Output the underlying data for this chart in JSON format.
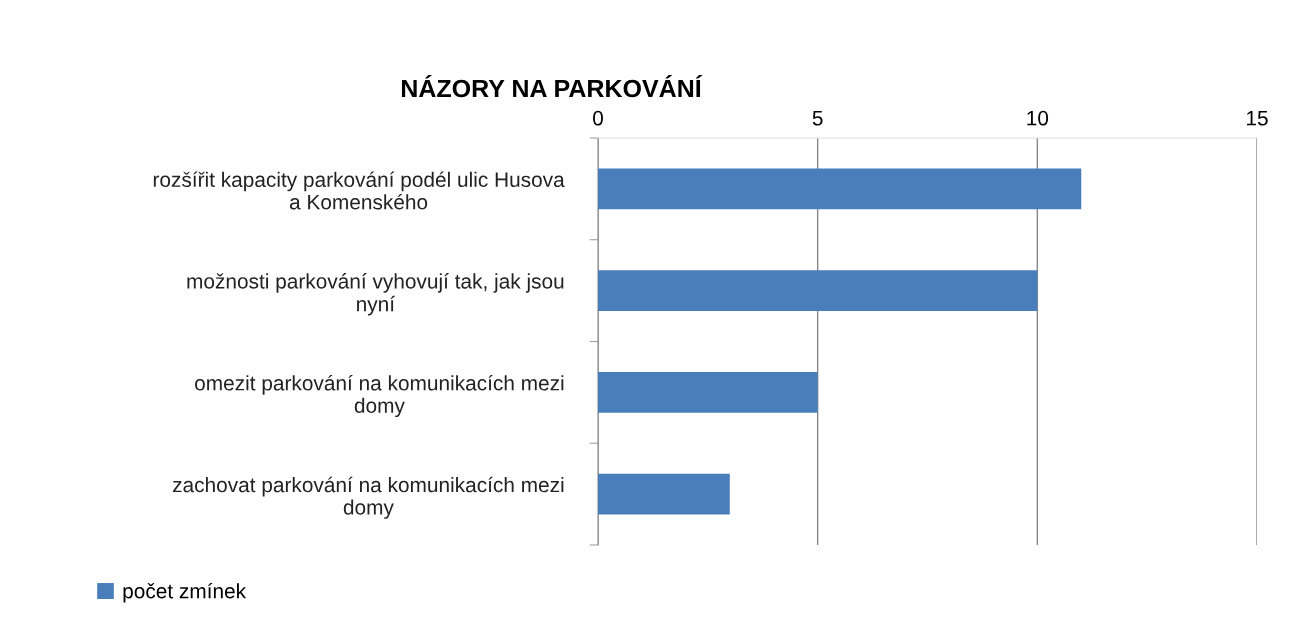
{
  "chart_data": {
    "type": "bar",
    "orientation": "horizontal",
    "title": "NÁZORY NA PARKOVÁNÍ",
    "categories": [
      "rozšířit kapacity parkování podél ulic Husova\na Komenského",
      "možnosti parkování vyhovují tak, jak jsou\nnyní",
      "omezit parkování na komunikacích mezi\ndomy",
      "zachovat parkování na komunikacích mezi\ndomy"
    ],
    "series": [
      {
        "name": "počet zmínek",
        "color": "#4a7ebb",
        "values": [
          11,
          10,
          5,
          3
        ]
      }
    ],
    "xlim": [
      0,
      15
    ],
    "xticks": [
      0,
      5,
      10,
      15
    ],
    "grid": "x",
    "legend": "bottom left"
  }
}
